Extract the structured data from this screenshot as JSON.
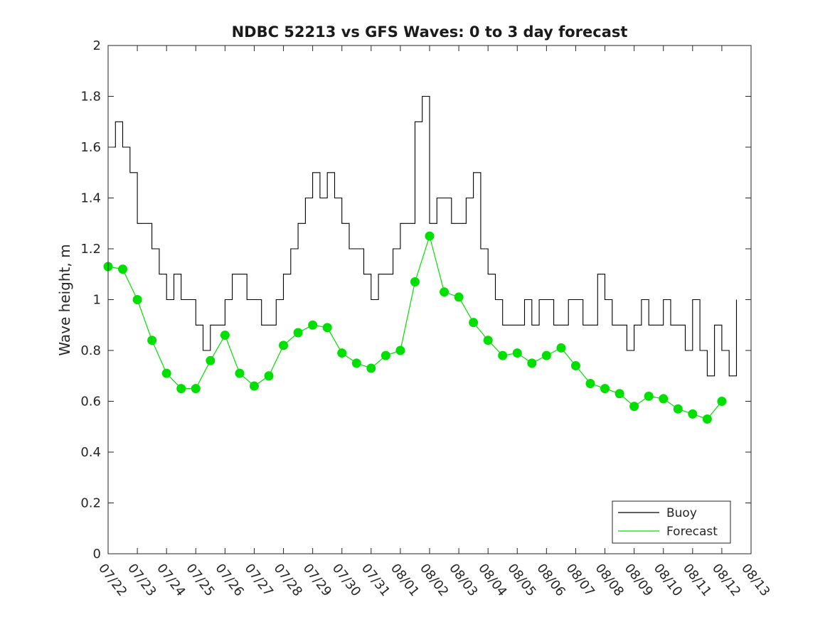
{
  "chart_data": {
    "type": "line",
    "title": "NDBC 52213 vs GFS Waves: 0 to 3 day forecast",
    "xlabel": "",
    "ylabel": "Wave height, m",
    "xlim": [
      "07/22",
      "08/13"
    ],
    "ylim": [
      0,
      2
    ],
    "y_ticks": [
      "0",
      "0.2",
      "0.4",
      "0.6",
      "0.8",
      "1",
      "1.2",
      "1.4",
      "1.6",
      "1.8",
      "2"
    ],
    "x_ticks": [
      "07/22",
      "07/23",
      "07/24",
      "07/25",
      "07/26",
      "07/27",
      "07/28",
      "07/29",
      "07/30",
      "07/31",
      "08/01",
      "08/02",
      "08/03",
      "08/04",
      "08/05",
      "08/06",
      "08/07",
      "08/08",
      "08/09",
      "08/10",
      "08/11",
      "08/12",
      "08/13"
    ],
    "grid": false,
    "legend_position": "bottom-right",
    "legend": [
      "Buoy",
      "Forecast"
    ],
    "colors": {
      "buoy": "#000000",
      "forecast": "#00e000",
      "axes": "#262626"
    },
    "buoy": {
      "name": "Buoy",
      "x": [
        "07/22 00:00",
        "07/22 06:00",
        "07/22 12:00",
        "07/22 18:00",
        "07/23 00:00",
        "07/23 06:00",
        "07/23 12:00",
        "07/23 18:00",
        "07/24 00:00",
        "07/24 06:00",
        "07/24 12:00",
        "07/24 18:00",
        "07/25 00:00",
        "07/25 06:00",
        "07/25 12:00",
        "07/25 18:00",
        "07/26 00:00",
        "07/26 06:00",
        "07/26 12:00",
        "07/26 18:00",
        "07/27 00:00",
        "07/27 06:00",
        "07/27 12:00",
        "07/27 18:00",
        "07/28 00:00",
        "07/28 06:00",
        "07/28 12:00",
        "07/28 18:00",
        "07/29 00:00",
        "07/29 06:00",
        "07/29 12:00",
        "07/29 18:00",
        "07/30 00:00",
        "07/30 06:00",
        "07/30 12:00",
        "07/30 18:00",
        "07/31 00:00",
        "07/31 06:00",
        "07/31 12:00",
        "07/31 18:00",
        "08/01 00:00",
        "08/01 06:00",
        "08/01 12:00",
        "08/01 18:00",
        "08/02 00:00",
        "08/02 06:00",
        "08/02 12:00",
        "08/02 18:00",
        "08/03 00:00",
        "08/03 06:00",
        "08/03 12:00",
        "08/03 18:00",
        "08/04 00:00",
        "08/04 06:00",
        "08/04 12:00",
        "08/04 18:00",
        "08/05 00:00",
        "08/05 06:00",
        "08/05 12:00",
        "08/05 18:00",
        "08/06 00:00",
        "08/06 06:00",
        "08/06 12:00",
        "08/06 18:00",
        "08/07 00:00",
        "08/07 06:00",
        "08/07 12:00",
        "08/07 18:00",
        "08/08 00:00",
        "08/08 06:00",
        "08/08 12:00",
        "08/08 18:00",
        "08/09 00:00",
        "08/09 06:00",
        "08/09 12:00",
        "08/09 18:00",
        "08/10 00:00",
        "08/10 06:00",
        "08/10 12:00",
        "08/10 18:00",
        "08/11 00:00",
        "08/11 06:00",
        "08/11 12:00",
        "08/11 18:00",
        "08/12 00:00",
        "08/12 06:00",
        "08/12 12:00"
      ],
      "y": [
        1.6,
        1.7,
        1.6,
        1.5,
        1.3,
        1.3,
        1.2,
        1.1,
        1.0,
        1.1,
        1.0,
        1.0,
        0.9,
        0.8,
        0.9,
        0.9,
        1.0,
        1.1,
        1.1,
        1.0,
        1.0,
        0.9,
        0.9,
        1.0,
        1.1,
        1.2,
        1.3,
        1.4,
        1.5,
        1.4,
        1.5,
        1.4,
        1.3,
        1.2,
        1.2,
        1.1,
        1.0,
        1.1,
        1.1,
        1.2,
        1.3,
        1.3,
        1.7,
        1.8,
        1.3,
        1.4,
        1.4,
        1.3,
        1.3,
        1.4,
        1.5,
        1.2,
        1.1,
        1.0,
        0.9,
        0.9,
        0.9,
        1.0,
        0.9,
        1.0,
        1.0,
        0.9,
        0.9,
        1.0,
        1.0,
        0.9,
        0.9,
        1.1,
        1.0,
        0.9,
        0.9,
        0.8,
        0.9,
        1.0,
        0.9,
        0.9,
        1.0,
        0.9,
        0.9,
        0.8,
        1.0,
        0.8,
        0.7,
        0.9,
        0.8,
        0.7,
        1.0
      ]
    },
    "forecast": {
      "name": "Forecast",
      "x": [
        "07/22 00:00",
        "07/22 12:00",
        "07/23 00:00",
        "07/23 12:00",
        "07/24 00:00",
        "07/24 12:00",
        "07/25 00:00",
        "07/25 12:00",
        "07/26 00:00",
        "07/26 12:00",
        "07/27 00:00",
        "07/27 12:00",
        "07/28 00:00",
        "07/28 12:00",
        "07/29 00:00",
        "07/29 12:00",
        "07/30 00:00",
        "07/30 12:00",
        "07/31 00:00",
        "07/31 12:00",
        "08/01 00:00",
        "08/01 12:00",
        "08/02 00:00",
        "08/02 12:00",
        "08/03 00:00",
        "08/03 12:00",
        "08/04 00:00",
        "08/04 12:00",
        "08/05 00:00",
        "08/05 12:00",
        "08/06 00:00",
        "08/06 12:00",
        "08/07 00:00",
        "08/07 12:00",
        "08/08 00:00",
        "08/08 12:00",
        "08/09 00:00",
        "08/09 12:00",
        "08/10 00:00",
        "08/10 12:00",
        "08/11 00:00",
        "08/11 12:00",
        "08/12 00:00"
      ],
      "y": [
        1.13,
        1.12,
        1.0,
        0.84,
        0.71,
        0.65,
        0.65,
        0.76,
        0.86,
        0.71,
        0.66,
        0.7,
        0.82,
        0.87,
        0.9,
        0.89,
        0.79,
        0.75,
        0.73,
        0.78,
        0.8,
        1.07,
        1.25,
        1.03,
        1.01,
        0.91,
        0.84,
        0.78,
        0.79,
        0.75,
        0.78,
        0.81,
        0.74,
        0.67,
        0.65,
        0.63,
        0.58,
        0.62,
        0.61,
        0.57,
        0.55,
        0.53,
        0.6
      ]
    }
  }
}
